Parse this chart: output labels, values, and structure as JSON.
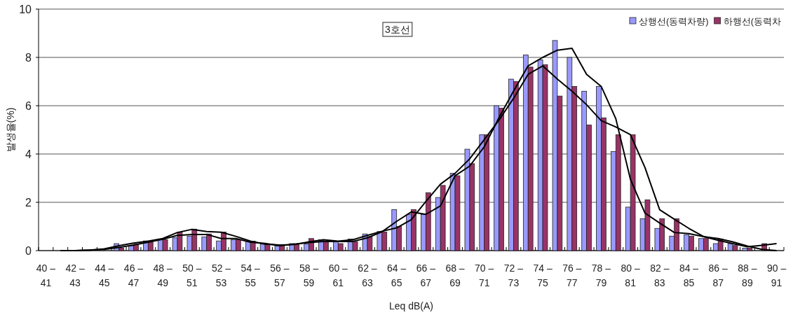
{
  "chart_data": {
    "type": "bar",
    "xlabel": "Leq dB(A)",
    "ylabel": "발생율(%)",
    "annotations": [
      "3호선"
    ],
    "categories": [
      "40 –\n41",
      null,
      "42 –\n43",
      null,
      "44 –\n45",
      null,
      "46 –\n47",
      null,
      "48 –\n49",
      null,
      "50 –\n51",
      null,
      "52 –\n53",
      null,
      "54 –\n55",
      null,
      "56 –\n57",
      null,
      "58 –\n59",
      null,
      "60 –\n61",
      null,
      "62 –\n63",
      null,
      "64 –\n65",
      null,
      "66 –\n67",
      null,
      "68 –\n69",
      null,
      "70 –\n71",
      null,
      "72 –\n73",
      null,
      "74 –\n75",
      null,
      "76 –\n77",
      null,
      "78 –\n79",
      null,
      "80 –\n81",
      null,
      "82 –\n83",
      null,
      "84 –\n85",
      null,
      "86 –\n87",
      null,
      "88 –\n89",
      null,
      "90 –\n91"
    ],
    "series": [
      {
        "name": "상행선(동력차량)",
        "color": "#9999ff",
        "values": [
          0,
          0,
          0,
          0,
          0.05,
          0.29,
          0.2,
          0.4,
          0.46,
          0.53,
          0.6,
          0.57,
          0.4,
          0.45,
          0.39,
          0.27,
          0.19,
          0.29,
          0.28,
          0.45,
          0.38,
          0.48,
          0.69,
          0.79,
          1.7,
          1.5,
          1.5,
          2.2,
          3.2,
          4.2,
          4.8,
          6.0,
          7.1,
          8.1,
          7.9,
          8.7,
          8.0,
          6.6,
          6.8,
          4.1,
          1.8,
          1.32,
          0.92,
          0.6,
          0.66,
          0.5,
          0.29,
          0.29,
          0.1,
          0,
          null
        ]
      },
      {
        "name": "하행선(동력차",
        "color": "#993366",
        "values": [
          0,
          0,
          0,
          0,
          0,
          0.1,
          0.26,
          0.35,
          0.45,
          0.77,
          0.89,
          0.69,
          0.77,
          0.45,
          0.39,
          0.27,
          0.19,
          0.27,
          0.5,
          0.37,
          0.29,
          0.37,
          0.58,
          0.77,
          1.0,
          1.7,
          2.4,
          2.7,
          3.1,
          3.6,
          4.8,
          5.9,
          7.0,
          7.6,
          7.7,
          6.4,
          6.8,
          5.2,
          5.5,
          4.8,
          4.8,
          2.1,
          1.32,
          1.32,
          0.6,
          0.5,
          0.48,
          0.21,
          0.1,
          0.29,
          null
        ]
      },
      {
        "type": "line",
        "color": "#000000",
        "values": [
          null,
          0,
          0,
          0.02,
          0.05,
          0.13,
          0.23,
          0.35,
          0.47,
          0.63,
          0.67,
          0.67,
          0.5,
          0.5,
          0.35,
          0.3,
          0.2,
          0.27,
          0.33,
          0.38,
          0.38,
          0.38,
          0.53,
          0.78,
          1.21,
          1.6,
          1.5,
          1.85,
          3.1,
          3.5,
          4.3,
          5.5,
          6.6,
          7.65,
          8.0,
          8.3,
          8.38,
          7.3,
          6.8,
          5.46,
          2.95,
          1.55,
          1.14,
          0.75,
          0.7,
          0.58,
          0.43,
          0.29,
          0.16,
          0.22,
          0.29
        ]
      },
      {
        "type": "line",
        "color": "#000000",
        "values": [
          null,
          0,
          0,
          0.02,
          0.07,
          0.2,
          0.31,
          0.39,
          0.5,
          0.75,
          0.88,
          0.79,
          0.76,
          0.59,
          0.39,
          0.27,
          0.23,
          0.25,
          0.36,
          0.45,
          0.39,
          0.45,
          0.63,
          0.8,
          0.94,
          1.28,
          2.03,
          2.75,
          3.2,
          3.8,
          4.6,
          5.4,
          6.3,
          7.3,
          7.65,
          7.1,
          6.6,
          6.04,
          5.38,
          5.12,
          4.8,
          3.43,
          1.69,
          1.3,
          0.92,
          0.58,
          0.5,
          0.36,
          0.19,
          0.05,
          0
        ]
      }
    ],
    "ylim": [
      0,
      10
    ],
    "yticks": [
      0,
      2,
      4,
      6,
      8,
      10
    ],
    "grid": "y",
    "legend": "top right"
  }
}
